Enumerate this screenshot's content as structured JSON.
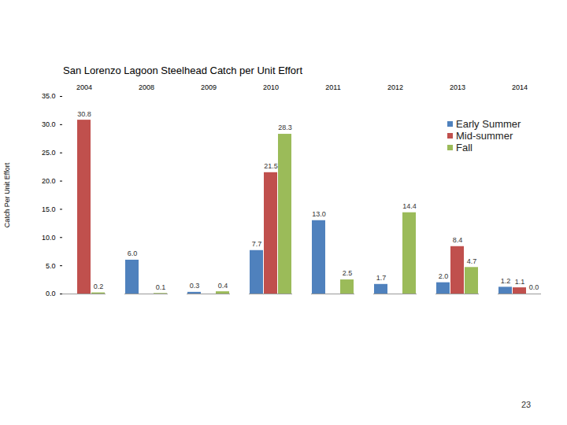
{
  "chart_data": {
    "type": "bar",
    "title": "San Lorenzo Lagoon Steelhead Catch per Unit Effort",
    "y_label": "Catch Per Unit Effort",
    "annotation": "23",
    "categories": [
      "2004",
      "2008",
      "2009",
      "2010",
      "2011",
      "2012",
      "2013",
      "2014"
    ],
    "series": [
      {
        "name": "Early Summer",
        "color": "#4F81BD",
        "values": [
          null,
          6.0,
          0.3,
          7.7,
          13.0,
          1.7,
          2.0,
          1.2
        ],
        "value_labels": [
          null,
          "6.0",
          "0.3",
          "7.7",
          "13.0",
          "1.7",
          "2.0",
          "1.2"
        ]
      },
      {
        "name": "Mid-summer",
        "color": "#C0504D",
        "values": [
          30.8,
          null,
          null,
          21.5,
          null,
          null,
          8.4,
          1.1
        ],
        "value_labels": [
          "30.8",
          null,
          null,
          "21.5",
          null,
          null,
          "8.4",
          "1.1"
        ]
      },
      {
        "name": "Fall",
        "color": "#9BBB59",
        "values": [
          0.2,
          0.1,
          0.4,
          28.3,
          2.5,
          14.4,
          4.7,
          0.0
        ],
        "value_labels": [
          "0.2",
          "0.1",
          "0.4",
          "28.3",
          "2.5",
          "14.4",
          "4.7",
          "0.0"
        ]
      }
    ],
    "ylim": [
      0,
      35
    ],
    "yticks": [
      {
        "value": 0,
        "label": "0.0"
      },
      {
        "value": 5,
        "label": "5.0"
      },
      {
        "value": 10,
        "label": "10.0"
      },
      {
        "value": 15,
        "label": "15.0"
      },
      {
        "value": 20,
        "label": "20.0"
      },
      {
        "value": 25,
        "label": "25.0"
      },
      {
        "value": 30,
        "label": "30.0"
      },
      {
        "value": 35,
        "label": "35.0"
      }
    ],
    "grid": false,
    "legend": "top-right",
    "data_labels": true
  }
}
